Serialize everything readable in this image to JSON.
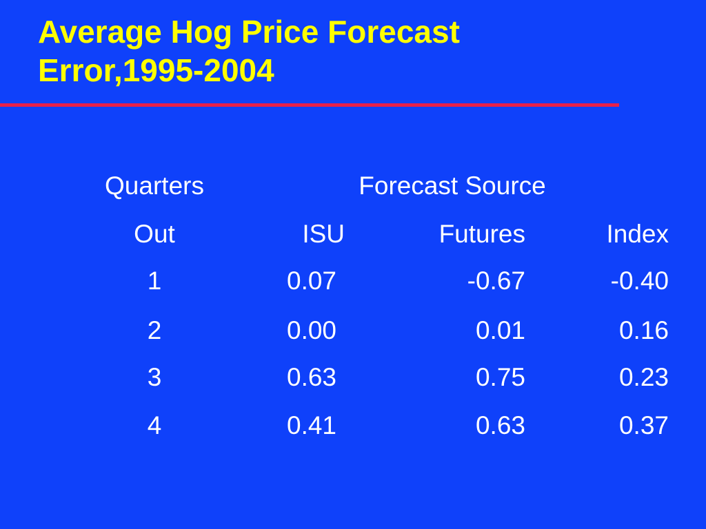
{
  "slide": {
    "title_line1": "Average Hog Price Forecast",
    "title_line2": "Error,1995-2004",
    "accent_color": "#ffff00",
    "rule_color": "#e8204a",
    "background_color": "#0f41fa"
  },
  "table": {
    "header_row1": {
      "quarters": "Quarters",
      "forecast_source": "Forecast Source"
    },
    "header_row2": {
      "out": "Out",
      "isu": "ISU",
      "futures": "Futures",
      "index": "Index"
    },
    "rows": [
      {
        "quarter": "1",
        "isu": "0.07",
        "futures": "-0.67",
        "index": "-0.40"
      },
      {
        "quarter": "2",
        "isu": "0.00",
        "futures": "0.01",
        "index": "0.16"
      },
      {
        "quarter": "3",
        "isu": "0.63",
        "futures": "0.75",
        "index": "0.23"
      },
      {
        "quarter": "4",
        "isu": "0.41",
        "futures": "0.63",
        "index": "0.37"
      }
    ]
  }
}
